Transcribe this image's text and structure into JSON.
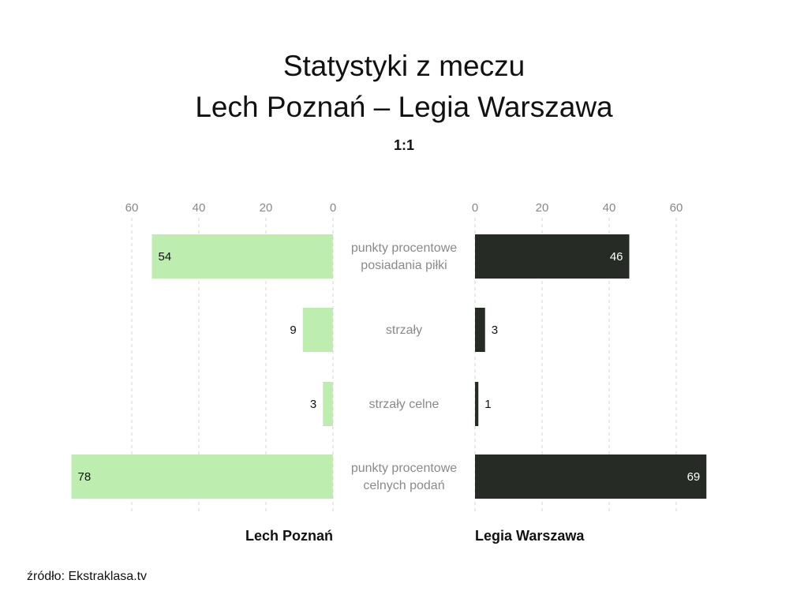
{
  "chart_data": {
    "type": "bar",
    "title_line1": "Statystyki z meczu",
    "title_line2": "Lech Poznań – Legia Warszawa",
    "subtitle": "1:1",
    "categories": [
      [
        "punkty procentowe",
        "posiadania piłki"
      ],
      [
        "strzały"
      ],
      [
        "strzały celne"
      ],
      [
        "punkty procentowe",
        "celnych podań"
      ]
    ],
    "series": [
      {
        "name": "Lech Poznań",
        "values": [
          54,
          9,
          3,
          78
        ],
        "color": "#bdeeb0",
        "label_color": "#111111"
      },
      {
        "name": "Legia Warszawa",
        "values": [
          46,
          3,
          1,
          69
        ],
        "color": "#272b25",
        "label_color": "#ffffff"
      }
    ],
    "xlim": [
      0,
      80
    ],
    "ticks": [
      0,
      20,
      40,
      60
    ],
    "grid": true
  },
  "source": "źródło: Ekstraklasa.tv"
}
